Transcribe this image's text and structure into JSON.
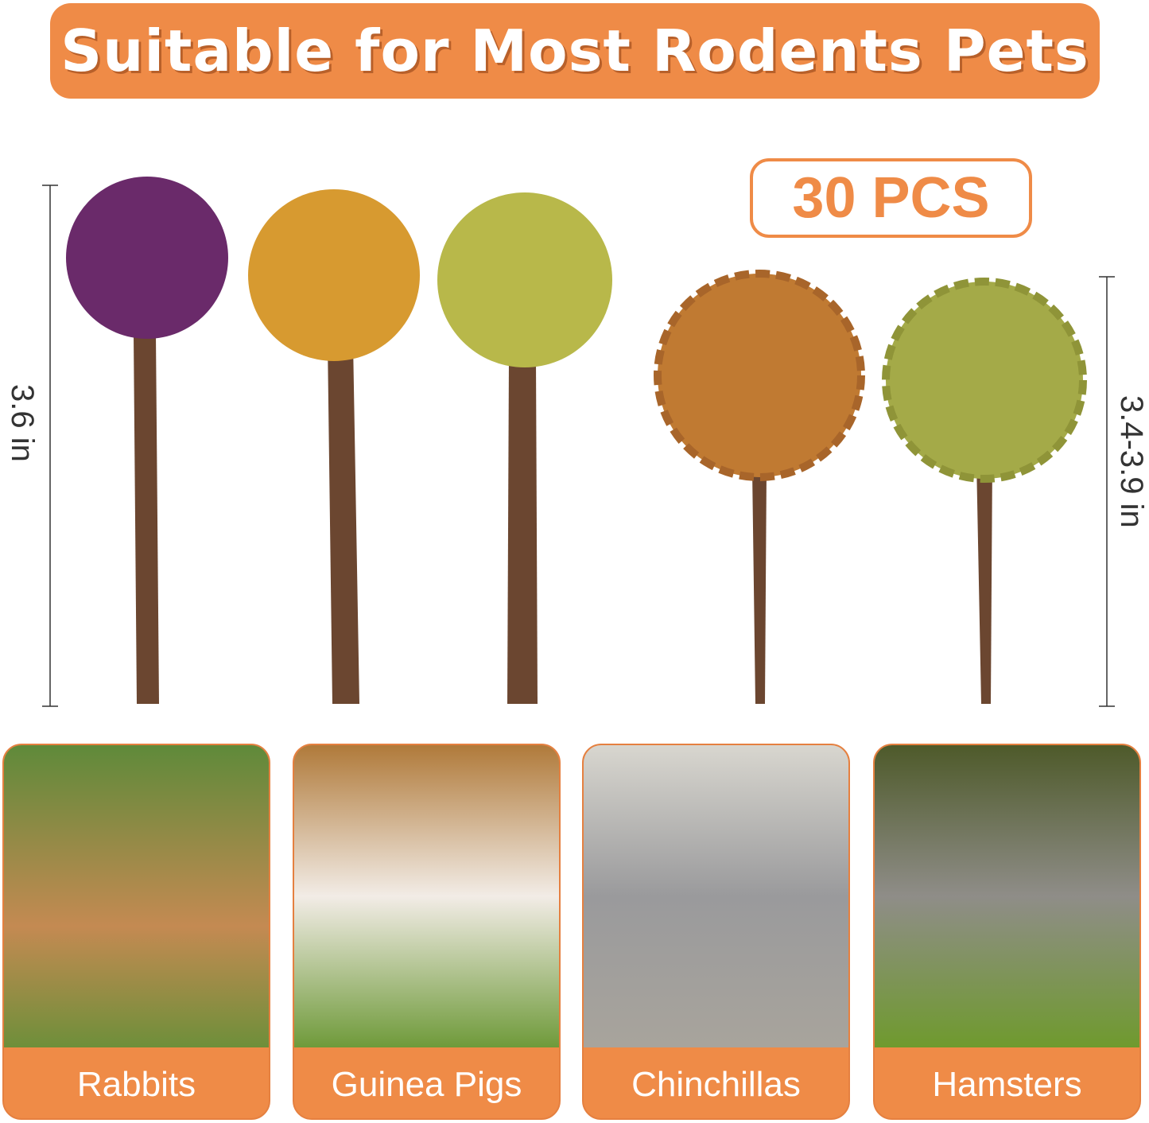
{
  "title": "Suitable for Most Rodents Pets",
  "count_badge": "30 PCS",
  "dimensions": {
    "left": "3.6 in",
    "right": "3.4-3.9 in"
  },
  "colors": {
    "accent": "#ef8b47"
  },
  "pets": [
    {
      "label": "Rabbits"
    },
    {
      "label": "Guinea Pigs"
    },
    {
      "label": "Chinchillas"
    },
    {
      "label": "Hamsters"
    }
  ]
}
